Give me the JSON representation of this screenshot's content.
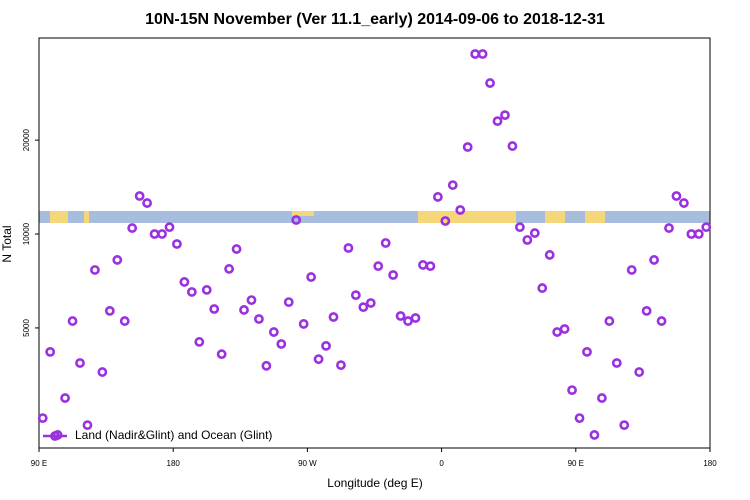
{
  "chart_data": {
    "type": "scatter",
    "title": "10N-15N November (Ver 11.1_early)   2014-09-06 to 2018-12-31",
    "x_label": "Longitude (deg E)",
    "y_label": "N Total",
    "x": [
      92.5,
      97.5,
      102.5,
      107.5,
      112.5,
      117.5,
      122.5,
      127.5,
      132.5,
      137.5,
      142.5,
      147.5,
      152.5,
      157.5,
      162.5,
      167.5,
      172.5,
      177.5,
      182.5,
      187.5,
      192.5,
      197.5,
      202.5,
      207.5,
      212.5,
      217.5,
      222.5,
      227.5,
      232.5,
      237.5,
      242.5,
      247.5,
      252.5,
      257.5,
      262.5,
      267.5,
      272.5,
      277.5,
      282.5,
      287.5,
      292.5,
      297.5,
      302.5,
      307.5,
      312.5,
      317.5,
      322.5,
      327.5,
      332.5,
      337.5,
      342.5,
      347.5,
      352.5,
      357.5,
      362.5,
      367.5,
      372.5,
      377.5,
      382.5,
      387.5,
      392.5,
      397.5,
      402.5,
      407.5,
      412.5,
      417.5,
      422.5,
      427.5,
      432.5,
      437.5,
      442.5,
      447.5,
      452.5,
      457.5,
      462.5,
      467.5,
      472.5,
      477.5,
      482.5,
      487.5,
      492.5,
      497.5,
      502.5,
      507.5,
      512.5,
      517.5,
      522.5,
      527.5,
      532.5,
      537.5
    ],
    "series": [
      {
        "name": "Land (Nadir&Glint) and Ocean (Glint)",
        "color": "#9b30e0",
        "values": [
          2570,
          4190,
          2270,
          2980,
          5260,
          3860,
          2440,
          7670,
          3610,
          5670,
          8260,
          5260,
          10450,
          13240,
          12570,
          10000,
          10000,
          10520,
          9290,
          7020,
          6520,
          4510,
          6620,
          5750,
          4120,
          7730,
          8950,
          5710,
          6140,
          5340,
          3780,
          4850,
          4440,
          6050,
          11090,
          5150,
          7280,
          3970,
          4380,
          5420,
          3800,
          9020,
          6370,
          5830,
          6010,
          7890,
          9360,
          7390,
          5460,
          5260,
          5380,
          7960,
          7890,
          13150,
          11010,
          14350,
          11940,
          19010,
          37760,
          37760,
          30480,
          23010,
          24050,
          19140,
          10520,
          9570,
          10070,
          6710,
          8570,
          4850,
          4960,
          3160,
          2570,
          4190,
          2270,
          2980,
          5260,
          3860,
          2440,
          7670,
          3610,
          5670,
          8260,
          5260,
          10450,
          13240,
          12570,
          10000,
          10000,
          10520
        ]
      }
    ],
    "xlim": [
      90,
      540
    ],
    "xticks": [
      {
        "value": 90,
        "label": "90 E"
      },
      {
        "value": 180,
        "label": "180"
      },
      {
        "value": 270,
        "label": "90 W"
      },
      {
        "value": 360,
        "label": "0"
      },
      {
        "value": 450,
        "label": "90 E"
      },
      {
        "value": 540,
        "label": "180"
      }
    ],
    "ylim": [
      2061,
      42500
    ],
    "yticks": [
      5000,
      10000,
      20000
    ],
    "log_y": true,
    "legend": "bottom-left"
  }
}
